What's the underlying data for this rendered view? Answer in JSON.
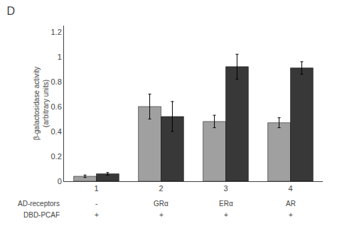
{
  "chart_data": {
    "type": "bar",
    "title": "D",
    "categories": [
      "1",
      "2",
      "3",
      "4"
    ],
    "series": [
      {
        "color": "#a0a0a0",
        "values": [
          0.04,
          0.6,
          0.48,
          0.47
        ],
        "errors": [
          0.01,
          0.1,
          0.05,
          0.04
        ]
      },
      {
        "color": "#383838",
        "values": [
          0.06,
          0.52,
          0.92,
          0.91
        ],
        "errors": [
          0.01,
          0.12,
          0.1,
          0.05
        ]
      }
    ],
    "ylabel": "β-galactosidase activity\n(arbitrary units)",
    "ylim": [
      0,
      1.25
    ],
    "yticks": [
      0,
      0.2,
      0.4,
      0.6,
      0.8,
      1,
      1.2
    ],
    "grid": false,
    "annotations": [
      {
        "label": "AD-receptors",
        "values": [
          "-",
          "GRα",
          "ERα",
          "AR"
        ]
      },
      {
        "label": "DBD-PCAF",
        "values": [
          "+",
          "+",
          "+",
          "+"
        ]
      }
    ]
  }
}
